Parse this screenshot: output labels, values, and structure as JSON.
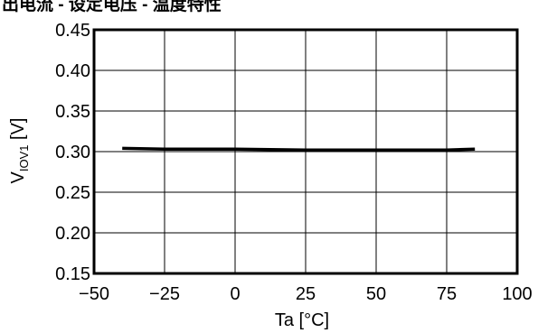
{
  "header": {
    "cut_title": "出电流 - 设定电压 - 温度特性"
  },
  "chart_data": {
    "type": "line",
    "title": "",
    "xlabel": "Ta [°C]",
    "ylabel": {
      "main": "V",
      "sub": "IOV1",
      "unit": " [V]"
    },
    "xlim": [
      -50,
      100
    ],
    "ylim": [
      0.15,
      0.45
    ],
    "xticks": [
      -50,
      -25,
      0,
      25,
      50,
      75,
      100
    ],
    "xtick_labels": [
      "−50",
      "−25",
      "0",
      "25",
      "50",
      "75",
      "100"
    ],
    "yticks": [
      0.15,
      0.2,
      0.25,
      0.3,
      0.35,
      0.4,
      0.45
    ],
    "ytick_labels": [
      "0.15",
      "0.20",
      "0.25",
      "0.30",
      "0.35",
      "0.40",
      "0.45"
    ],
    "grid": true,
    "series": [
      {
        "x": [
          -40,
          -25,
          0,
          25,
          50,
          75,
          85
        ],
        "y": [
          0.304,
          0.303,
          0.303,
          0.302,
          0.302,
          0.302,
          0.303
        ],
        "color": "#000000"
      }
    ]
  }
}
